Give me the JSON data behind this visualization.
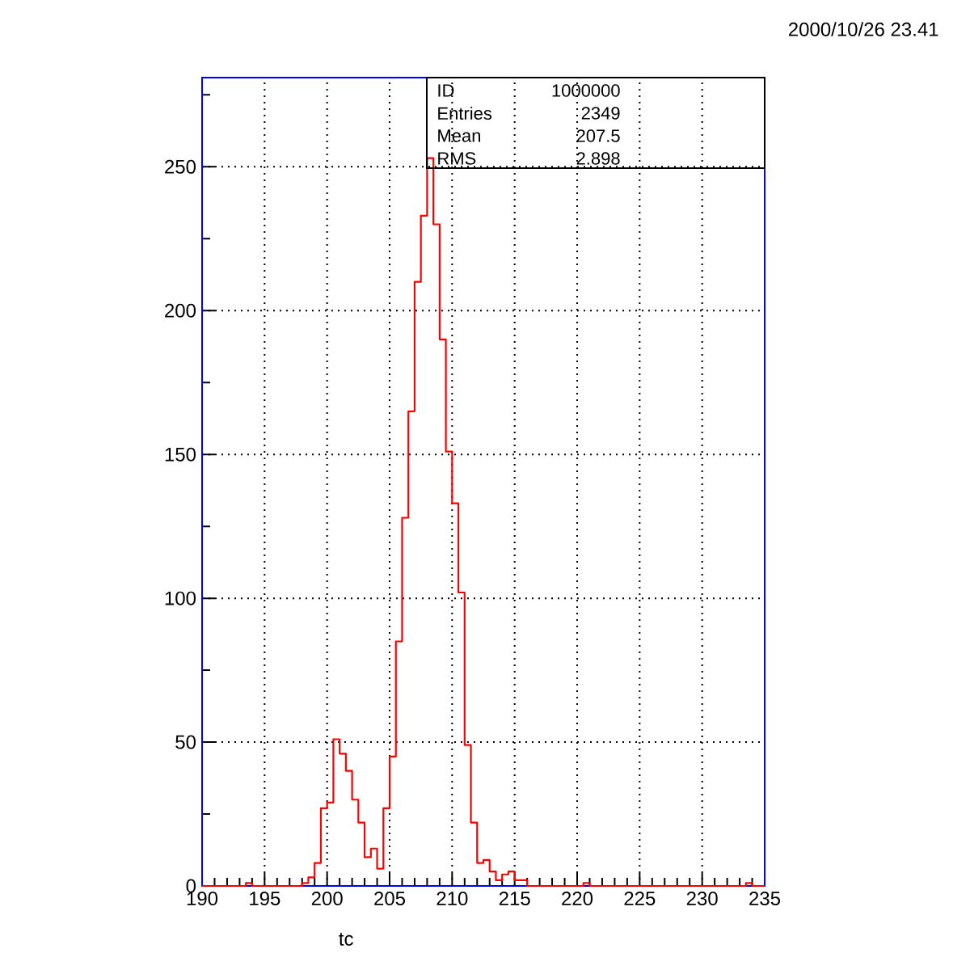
{
  "chart_data": {
    "type": "histogram",
    "xlabel": "tc",
    "bins": [
      190,
      190.5,
      191,
      191.5,
      192,
      192.5,
      193,
      193.5,
      194,
      194.5,
      195,
      195.5,
      196,
      196.5,
      197,
      197.5,
      198,
      198.5,
      199,
      199.5,
      200,
      200.5,
      201,
      201.5,
      202,
      202.5,
      203,
      203.5,
      204,
      204.5,
      205,
      205.5,
      206,
      206.5,
      207,
      207.5,
      208,
      208.5,
      209,
      209.5,
      210,
      210.5,
      211,
      211.5,
      212,
      212.5,
      213,
      213.5,
      214,
      214.5,
      215,
      215.5,
      216,
      216.5,
      217,
      217.5,
      218,
      218.5,
      219,
      219.5,
      220,
      220.5,
      221,
      221.5,
      222,
      222.5,
      223,
      223.5,
      224,
      224.5,
      225,
      225.5,
      226,
      226.5,
      227,
      227.5,
      228,
      228.5,
      229,
      229.5,
      230,
      230.5,
      231,
      231.5,
      232,
      232.5,
      233,
      233.5,
      234,
      234.5,
      235
    ],
    "values": [
      0,
      0,
      0,
      0,
      0,
      0,
      0,
      1,
      0,
      0,
      0,
      0,
      0,
      0,
      0,
      0,
      1,
      3,
      8,
      27,
      29,
      51,
      46,
      40,
      30,
      22,
      10,
      13,
      6,
      27,
      45,
      85,
      128,
      165,
      210,
      233,
      253,
      230,
      190,
      151,
      133,
      102,
      49,
      22,
      8,
      9,
      5,
      2,
      4,
      5,
      2,
      2,
      0,
      0,
      0,
      0,
      0,
      0,
      0,
      0,
      0,
      1,
      0,
      0,
      0,
      0,
      0,
      0,
      0,
      0,
      0,
      0,
      0,
      0,
      0,
      0,
      0,
      0,
      0,
      0,
      0,
      0,
      0,
      0,
      0,
      0,
      0,
      1,
      0,
      0
    ],
    "color": "#ff0000",
    "xlim": [
      190,
      235
    ],
    "ylim": [
      0,
      281
    ],
    "xticks": [
      190,
      {
        "value": 191,
        "label": null
      },
      {
        "value": 192,
        "label": null
      },
      {
        "value": 193,
        "label": null
      },
      {
        "value": 194,
        "label": null
      },
      195,
      {
        "value": 196,
        "label": null
      },
      {
        "value": 197,
        "label": null
      },
      {
        "value": 198,
        "label": null
      },
      {
        "value": 199,
        "label": null
      },
      200,
      {
        "value": 201,
        "label": null
      },
      {
        "value": 202,
        "label": null
      },
      {
        "value": 203,
        "label": null
      },
      {
        "value": 204,
        "label": null
      },
      205,
      {
        "value": 206,
        "label": null
      },
      {
        "value": 207,
        "label": null
      },
      {
        "value": 208,
        "label": null
      },
      {
        "value": 209,
        "label": null
      },
      210,
      {
        "value": 211,
        "label": null
      },
      {
        "value": 212,
        "label": null
      },
      {
        "value": 213,
        "label": null
      },
      {
        "value": 214,
        "label": null
      },
      215,
      {
        "value": 216,
        "label": null
      },
      {
        "value": 217,
        "label": null
      },
      {
        "value": 218,
        "label": null
      },
      {
        "value": 219,
        "label": null
      },
      220,
      {
        "value": 221,
        "label": null
      },
      {
        "value": 222,
        "label": null
      },
      {
        "value": 223,
        "label": null
      },
      {
        "value": 224,
        "label": null
      },
      225,
      {
        "value": 226,
        "label": null
      },
      {
        "value": 227,
        "label": null
      },
      {
        "value": 228,
        "label": null
      },
      {
        "value": 229,
        "label": null
      },
      230,
      {
        "value": 231,
        "label": null
      },
      {
        "value": 232,
        "label": null
      },
      {
        "value": 233,
        "label": null
      },
      {
        "value": 234,
        "label": null
      },
      235
    ],
    "yticks": [
      0,
      {
        "value": 25,
        "label": null
      },
      50,
      {
        "value": 75,
        "label": null
      },
      100,
      {
        "value": 125,
        "label": null
      },
      150,
      {
        "value": 175,
        "label": null
      },
      200,
      {
        "value": 225,
        "label": null
      },
      250,
      {
        "value": 275,
        "label": null
      }
    ],
    "grid": true,
    "annotations": [
      "2000/10/26  23.41",
      "ID",
      "1000000",
      "Entries",
      "2349",
      "Mean",
      "207.5",
      "RMS",
      "2.898"
    ]
  }
}
